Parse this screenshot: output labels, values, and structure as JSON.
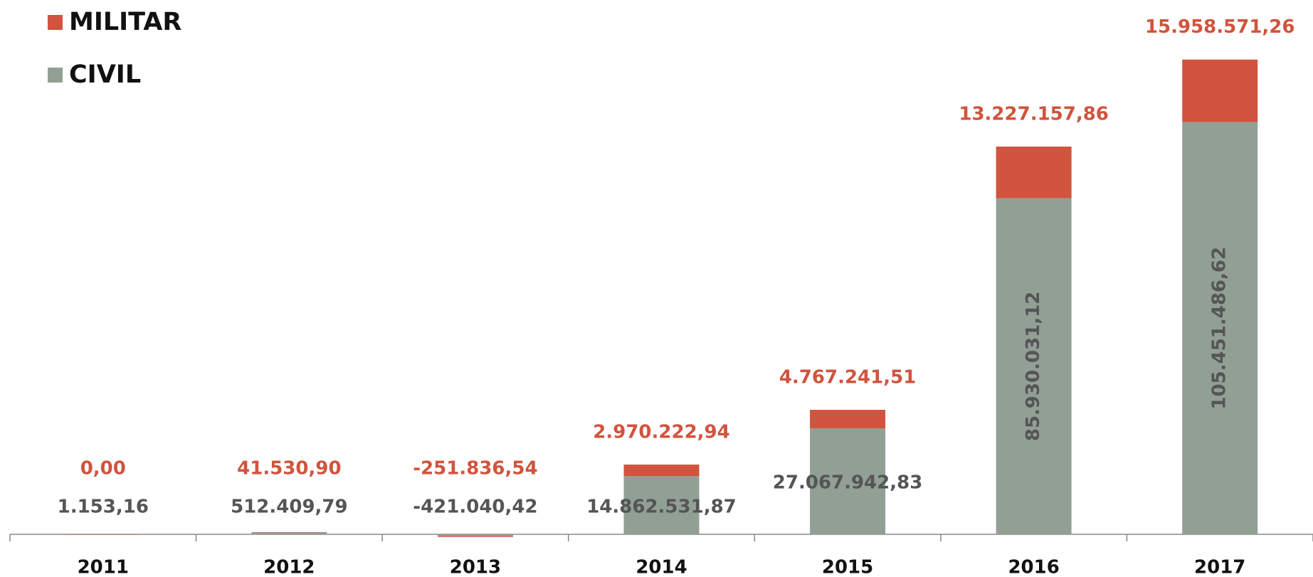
{
  "chart_data": {
    "type": "stacked_bar",
    "categories": [
      "2011",
      "2012",
      "2013",
      "2014",
      "2015",
      "2016",
      "2017"
    ],
    "series": [
      {
        "name": "CIVIL",
        "color": "#929f95",
        "values": [
          1153.16,
          512409.79,
          -421040.42,
          14862531.87,
          27067942.83,
          85930031.12,
          105451486.62
        ],
        "value_labels": [
          "1.153,16",
          "512.409,79",
          "-421.040,42",
          "14.862.531,87",
          "27.067.942,83",
          "85.930.031,12",
          "105.451.486,62"
        ]
      },
      {
        "name": "MILITAR",
        "color": "#d0543e",
        "values": [
          0,
          41530.9,
          -251836.54,
          2970222.94,
          4767241.51,
          13227157.86,
          15958571.26
        ],
        "value_labels": [
          "0,00",
          "41.530,90",
          "-251.836,54",
          "2.970.222,94",
          "4.767.241,51",
          "13.227.157,86",
          "15.958.571,26"
        ]
      }
    ],
    "ylim": [
      0,
      125000000
    ],
    "legend": "top-left"
  }
}
